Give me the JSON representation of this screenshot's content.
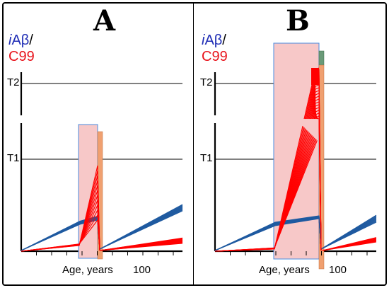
{
  "figure": {
    "panels": [
      {
        "id": "A",
        "title": "A",
        "y_label": {
          "blue_italic": "i",
          "blue": "Aβ",
          "sep": "/",
          "red": "C99"
        },
        "thresholds": [
          "T2",
          "T1"
        ],
        "x_axis_label": "Age, years",
        "x_tick": "100"
      },
      {
        "id": "B",
        "title": "B",
        "y_label": {
          "blue_italic": "i",
          "blue": "Aβ",
          "sep": "/",
          "red": "C99"
        },
        "thresholds": [
          "T2",
          "T1"
        ],
        "x_axis_label": "Age, years",
        "x_tick": "100"
      }
    ],
    "colors": {
      "iabeta": "#1f5aa0",
      "c99": "#ff0000",
      "window_fill": "#f7c8c8",
      "window_border": "#4a8de0",
      "bar_orange": "#f0a070",
      "bar_green": "#6a9a78",
      "axis": "#000000"
    }
  }
}
